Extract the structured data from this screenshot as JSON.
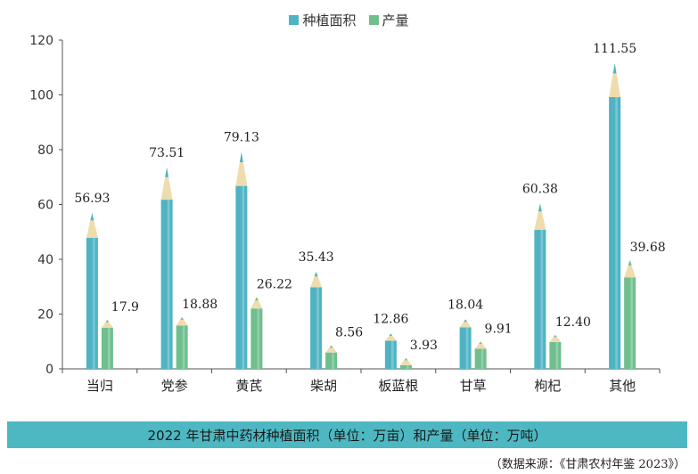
{
  "chart_data": {
    "type": "bar",
    "categories": [
      "当归",
      "党参",
      "黄芪",
      "柴胡",
      "板蓝根",
      "甘草",
      "枸杞",
      "其他"
    ],
    "series": [
      {
        "name": "种植面积",
        "color": "#4fb3c4",
        "values": [
          56.93,
          73.51,
          79.13,
          35.43,
          12.86,
          18.04,
          60.38,
          111.55
        ],
        "labels": [
          "56.93",
          "73.51",
          "79.13",
          "35.43",
          "12.86",
          "18.04",
          "60.38",
          "111.55"
        ]
      },
      {
        "name": "产量",
        "color": "#6fbf8e",
        "values": [
          17.9,
          18.88,
          26.22,
          8.56,
          3.93,
          9.91,
          12.4,
          39.68
        ],
        "labels": [
          "17.9",
          "18.88",
          "26.22",
          "8.56",
          "3.93",
          "9.91",
          "12.40",
          "39.68"
        ]
      }
    ],
    "yticks": [
      "0",
      "20",
      "40",
      "60",
      "80",
      "100",
      "120"
    ],
    "ylim": [
      0,
      120
    ],
    "grid": false,
    "legend_position": "top-center"
  },
  "caption": "2022 年甘肃中药材种植面积（单位：万亩）和产量（单位：万吨）",
  "source": "（数据来源：《甘肃农村年鉴 2023》）",
  "colors": {
    "area": "#4fb3c4",
    "output": "#6fbf8e",
    "tip": "#efdcae",
    "caption_bg": "#4db8c2"
  }
}
